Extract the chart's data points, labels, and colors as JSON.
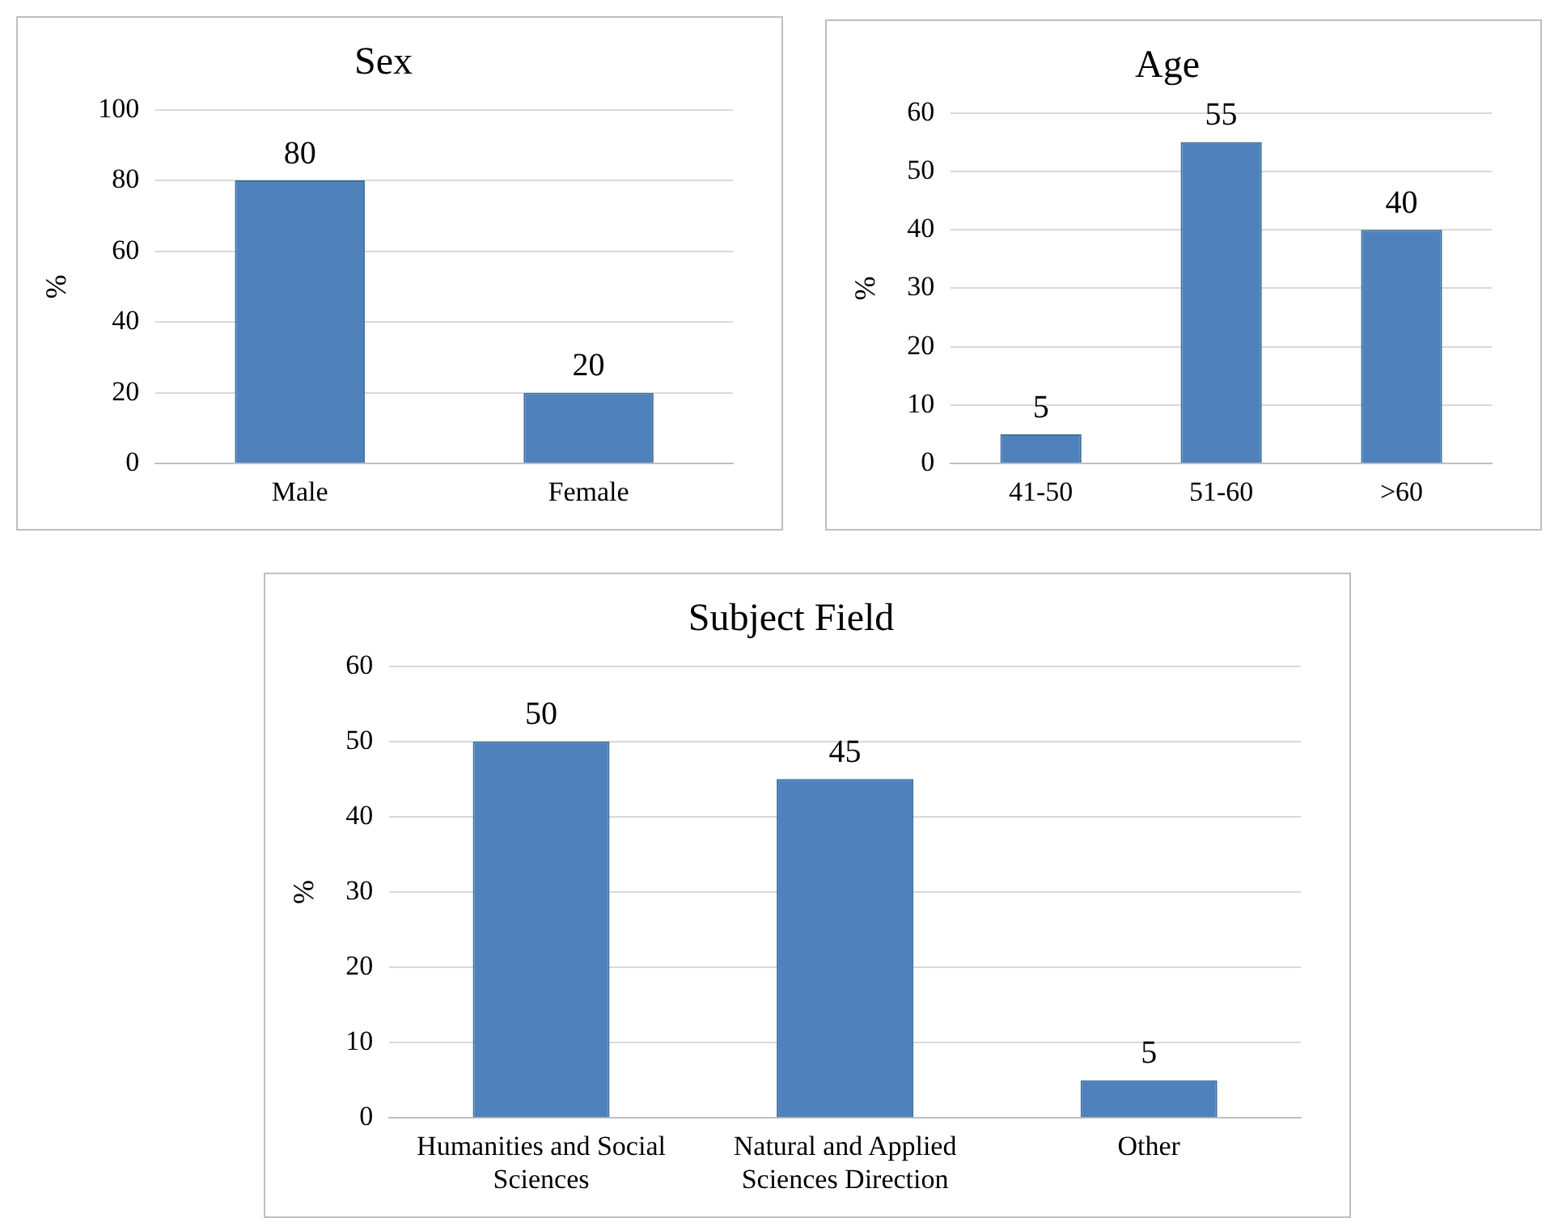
{
  "chart_data": [
    {
      "type": "bar",
      "title": "Sex",
      "ylabel": "%",
      "categories": [
        "Male",
        "Female"
      ],
      "values": [
        80,
        20
      ],
      "color": "#4f81bd",
      "ylim": [
        0,
        100
      ],
      "yticks": [
        0,
        20,
        40,
        60,
        80,
        100
      ],
      "grid": "y",
      "data_labels": true
    },
    {
      "type": "bar",
      "title": "Age",
      "ylabel": "%",
      "categories": [
        "41-50",
        "51-60",
        ">60"
      ],
      "values": [
        5,
        55,
        40
      ],
      "color": "#4f81bd",
      "ylim": [
        0,
        60
      ],
      "yticks": [
        0,
        10,
        20,
        30,
        40,
        50,
        60
      ],
      "grid": "y",
      "data_labels": true
    },
    {
      "type": "bar",
      "title": "Subject Field",
      "ylabel": "%",
      "categories": [
        "Humanities and Social Sciences",
        "Natural and Applied Sciences Direction",
        "Other"
      ],
      "values": [
        50,
        45,
        5
      ],
      "color": "#4f81bd",
      "ylim": [
        0,
        60
      ],
      "yticks": [
        0,
        10,
        20,
        30,
        40,
        50,
        60
      ],
      "grid": "y",
      "data_labels": true
    }
  ]
}
